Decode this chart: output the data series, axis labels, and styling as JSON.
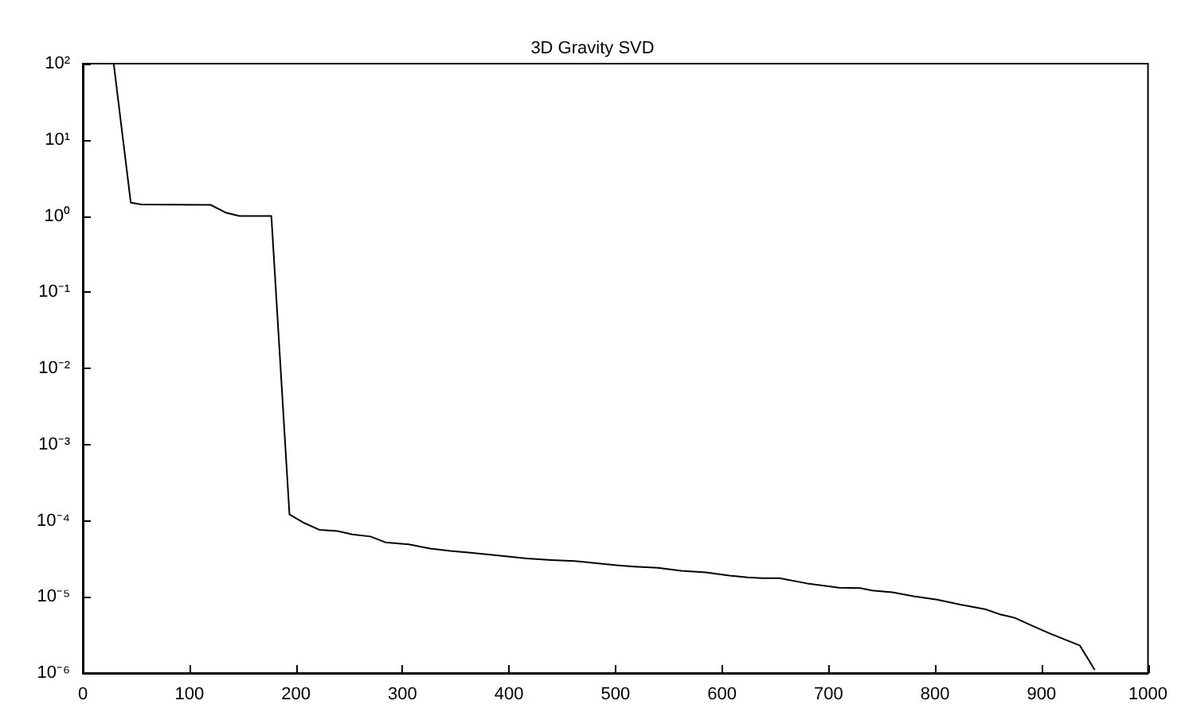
{
  "chart_data": {
    "type": "line",
    "title": "3D Gravity SVD",
    "x": [
      29,
      45,
      55,
      120,
      134,
      147,
      177,
      194,
      208,
      222,
      239,
      253,
      270,
      284,
      306,
      326,
      345,
      364,
      390,
      417,
      440,
      462,
      479,
      501,
      518,
      540,
      562,
      585,
      607,
      624,
      638,
      654,
      680,
      710,
      730,
      741,
      760,
      780,
      802,
      824,
      847,
      861,
      875,
      891,
      908,
      936,
      950
    ],
    "values": [
      100,
      1.5,
      1.42,
      1.4,
      1.11,
      1.0,
      1.0,
      0.000121,
      9.3e-05,
      7.6e-05,
      7.3e-05,
      6.6e-05,
      6.2e-05,
      5.2e-05,
      4.9e-05,
      4.3e-05,
      4e-05,
      3.8e-05,
      3.5e-05,
      3.2e-05,
      3.05e-05,
      2.95e-05,
      2.8e-05,
      2.6e-05,
      2.5e-05,
      2.4e-05,
      2.2e-05,
      2.1e-05,
      1.9e-05,
      1.8e-05,
      1.76e-05,
      1.76e-05,
      1.5e-05,
      1.32e-05,
      1.3e-05,
      1.21e-05,
      1.15e-05,
      1.02e-05,
      9.2e-06,
      7.9e-06,
      6.9e-06,
      5.9e-06,
      5.3e-06,
      4.2e-06,
      3.3e-06,
      2.3e-06,
      1.1e-06
    ],
    "color": "#000000",
    "log": "y",
    "grid": false,
    "line_style": "solid",
    "marker": "none",
    "xlim": [
      0,
      1000
    ],
    "xticks": [
      0,
      100,
      200,
      300,
      400,
      500,
      600,
      700,
      800,
      900,
      1000
    ],
    "ylim": [
      1e-06,
      100
    ],
    "yticks": [
      {
        "value": 1e-06,
        "label": "10⁻⁶"
      },
      {
        "value": 1e-05,
        "label": "10⁻⁵"
      },
      {
        "value": 0.0001,
        "label": "10⁻⁴"
      },
      {
        "value": 0.001,
        "label": "10⁻³"
      },
      {
        "value": 0.01,
        "label": "10⁻²"
      },
      {
        "value": 0.1,
        "label": "10⁻¹"
      },
      {
        "value": 1,
        "label": "10⁰"
      },
      {
        "value": 10,
        "label": "10¹"
      },
      {
        "value": 100,
        "label": "10²"
      }
    ]
  }
}
